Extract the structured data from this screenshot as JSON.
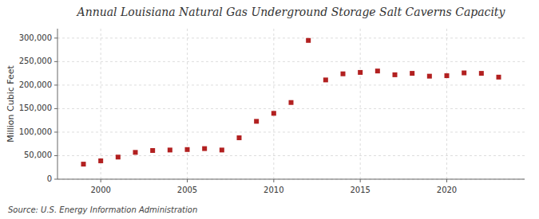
{
  "chart_data": {
    "type": "scatter",
    "title": "Annual Louisiana Natural Gas Underground Storage Salt Caverns Capacity",
    "ylabel": "Million Cubic Feet",
    "annotation": "Source: U.S. Energy Information Administration",
    "x": [
      1999,
      2000,
      2001,
      2002,
      2003,
      2004,
      2005,
      2006,
      2007,
      2008,
      2009,
      2010,
      2011,
      2012,
      2013,
      2014,
      2015,
      2016,
      2017,
      2018,
      2019,
      2020,
      2021,
      2022,
      2023
    ],
    "values": [
      32000,
      39000,
      47000,
      57000,
      61000,
      62000,
      63000,
      65000,
      62000,
      88000,
      123000,
      140000,
      163000,
      295000,
      211000,
      224000,
      227000,
      230000,
      222000,
      225000,
      219000,
      220000,
      226000,
      225000,
      217000
    ],
    "color": "#b22020",
    "marker": "square",
    "xlim": [
      1997.5,
      2024.5
    ],
    "xticks": [
      2000,
      2005,
      2010,
      2015,
      2020
    ],
    "ylim": [
      0,
      320000
    ],
    "yticks": [
      0,
      {
        "value": 50000,
        "label": "50,000"
      },
      {
        "value": 100000,
        "label": "100,000"
      },
      {
        "value": 150000,
        "label": "150,000"
      },
      {
        "value": 200000,
        "label": "200,000"
      },
      {
        "value": 250000,
        "label": "250,000"
      },
      {
        "value": 300000,
        "label": "300,000"
      }
    ],
    "grid": true
  }
}
